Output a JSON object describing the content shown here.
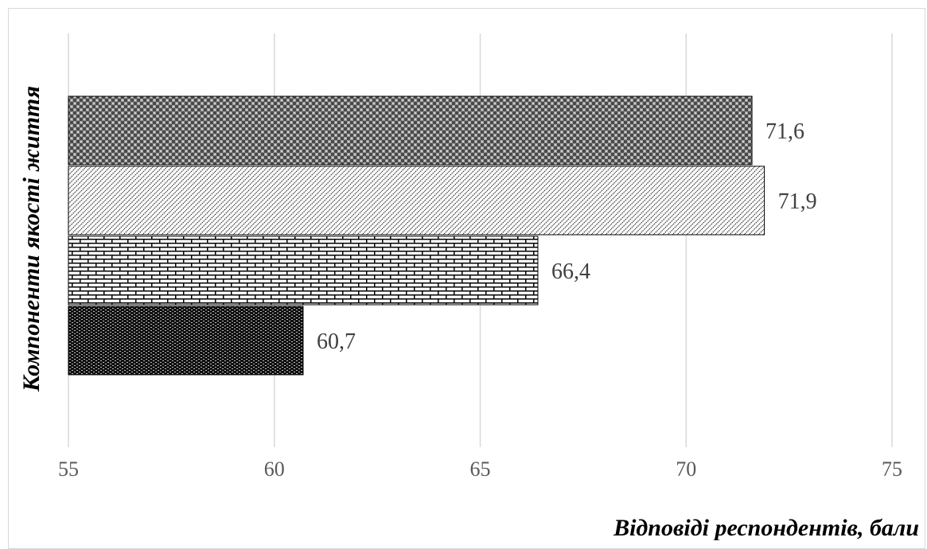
{
  "chart_data": {
    "type": "bar",
    "orientation": "horizontal",
    "title": "",
    "xlabel": "Відповіді респондентів, бали",
    "ylabel": "Компоненти якості життя",
    "xlim": [
      55,
      75
    ],
    "x_ticks": [
      "55",
      "60",
      "65",
      "70",
      "75"
    ],
    "grid": true,
    "legend": "none",
    "bars": [
      {
        "value": 71.6,
        "label": "71,6",
        "pattern": "checker-gray"
      },
      {
        "value": 71.9,
        "label": "71,9",
        "pattern": "diagonal-dots"
      },
      {
        "value": 66.4,
        "label": "66,4",
        "pattern": "brick"
      },
      {
        "value": 60.7,
        "label": "60,7",
        "pattern": "dense-dark"
      }
    ]
  }
}
